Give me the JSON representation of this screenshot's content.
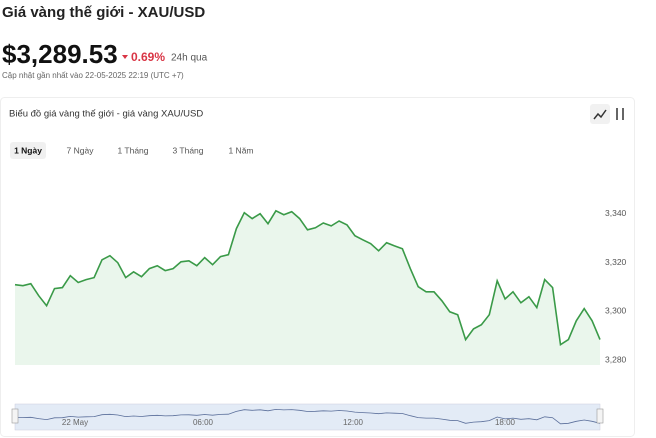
{
  "header": {
    "title": "Giá vàng thế giới - XAU/USD",
    "price": "$3,289.53",
    "change": "0.69%",
    "period": "24h qua",
    "updated": "Cập nhật gần nhất vào 22-05-2025 22:19 (UTC +7)"
  },
  "card": {
    "title": "Biểu đồ giá vàng thế giới - giá vàng XAU/USD",
    "tabs": [
      "1 Ngày",
      "7 Ngày",
      "1 Tháng",
      "3 Tháng",
      "1 Năm"
    ]
  },
  "chart_data": {
    "type": "line",
    "color": "#3a9a48",
    "values": [
      3310.9,
      3310.5,
      3311.3,
      3306.4,
      3302.3,
      3309.3,
      3309.7,
      3314.6,
      3311.8,
      3313,
      3313.8,
      3321.1,
      3322.8,
      3319.9,
      3313.8,
      3316.2,
      3314.2,
      3317.5,
      3318.7,
      3316.7,
      3317.5,
      3320.3,
      3320.7,
      3318.7,
      3322,
      3319.1,
      3322.4,
      3323.2,
      3333.9,
      3340.4,
      3338,
      3340,
      3335.9,
      3341.2,
      3339.6,
      3340.8,
      3338,
      3333.4,
      3334.2,
      3336.2,
      3335,
      3337,
      3335.4,
      3331,
      3329.3,
      3327.7,
      3324.8,
      3328.1,
      3326.8,
      3325.6,
      3317.5,
      3310.1,
      3308,
      3308,
      3304.3,
      3299.8,
      3298.6,
      3288.4,
      3292.8,
      3294.5,
      3298.6,
      3312.5,
      3305.1,
      3308,
      3303.5,
      3306,
      3301.5,
      3313,
      3309.7,
      3286.3,
      3288.4,
      3296.1,
      3301.1,
      3296.1,
      3288.4
    ],
    "ylim": [
      3278,
      3362
    ],
    "yticks": [
      {
        "value": 3280,
        "label": "3,280"
      },
      {
        "value": 3300,
        "label": "3,300"
      },
      {
        "value": 3320,
        "label": "3,320"
      },
      {
        "value": 3340,
        "label": "3,340"
      }
    ],
    "grid": false,
    "navigator_labels": [
      "22 May",
      "06:00",
      "12:00",
      "18:00"
    ]
  }
}
